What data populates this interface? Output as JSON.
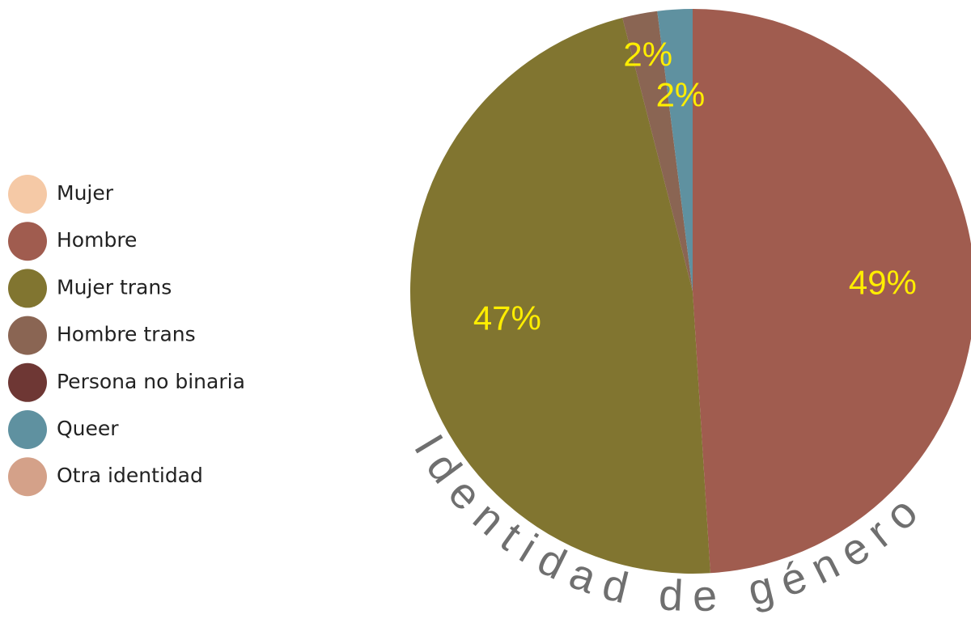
{
  "chart_data": {
    "type": "pie",
    "title": "Identidad de género",
    "categories": [
      "Mujer",
      "Hombre",
      "Mujer trans",
      "Hombre trans",
      "Persona no binaria",
      "Queer",
      "Otra identidad"
    ],
    "values": [
      0,
      49,
      47,
      2,
      0,
      2,
      0
    ],
    "value_labels": [
      null,
      "49%",
      "47%",
      "2%",
      null,
      "2%",
      null
    ],
    "colors": [
      "#f5c9a6",
      "#a05c4f",
      "#817530",
      "#8a6553",
      "#6e3734",
      "#5f91a0",
      "#d4a189"
    ],
    "legend": "left"
  }
}
